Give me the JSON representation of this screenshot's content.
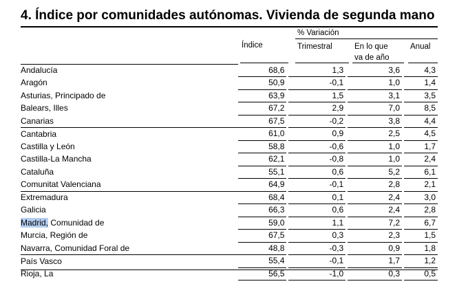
{
  "title": "4. Índice por comunidades autónomas. Vivienda de segunda mano",
  "headers": {
    "indice": "Índice",
    "variacion": "% Variación",
    "trimestral": "Trimestral",
    "en_lo_que_1": "En lo que",
    "en_lo_que_2": "va de año",
    "anual": "Anual"
  },
  "rows": [
    {
      "name": "Andalucía",
      "indice": "68,6",
      "trimestral": "1,3",
      "ytd": "3,6",
      "anual": "4,3"
    },
    {
      "name": "Aragón",
      "indice": "50,9",
      "trimestral": "-0,1",
      "ytd": "1,0",
      "anual": "1,4"
    },
    {
      "name": "Asturias, Principado de",
      "indice": "63,9",
      "trimestral": "1,5",
      "ytd": "3,1",
      "anual": "3,5"
    },
    {
      "name": "Balears, Illes",
      "indice": "67,2",
      "trimestral": "2,9",
      "ytd": "7,0",
      "anual": "8,5"
    },
    {
      "name": "Canarias",
      "indice": "67,5",
      "trimestral": "-0,2",
      "ytd": "3,8",
      "anual": "4,4"
    },
    {
      "name": "Cantabria",
      "indice": "61,0",
      "trimestral": "0,9",
      "ytd": "2,5",
      "anual": "4,5"
    },
    {
      "name": "Castilla y León",
      "indice": "58,8",
      "trimestral": "-0,6",
      "ytd": "1,0",
      "anual": "1,7"
    },
    {
      "name": "Castilla-La Mancha",
      "indice": "62,1",
      "trimestral": "-0,8",
      "ytd": "1,0",
      "anual": "2,4"
    },
    {
      "name": "Cataluña",
      "indice": "55,1",
      "trimestral": "0,6",
      "ytd": "5,2",
      "anual": "6,1"
    },
    {
      "name": "Comunitat Valenciana",
      "indice": "64,9",
      "trimestral": "-0,1",
      "ytd": "2,8",
      "anual": "2,1"
    },
    {
      "name": "Extremadura",
      "indice": "68,4",
      "trimestral": "0,1",
      "ytd": "2,4",
      "anual": "3,0"
    },
    {
      "name": "Galicia",
      "indice": "66,3",
      "trimestral": "0,6",
      "ytd": "2,4",
      "anual": "2,8"
    },
    {
      "name_highlight": "Madrid,",
      "name_rest": " Comunidad de",
      "indice": "59,0",
      "trimestral": "1,1",
      "ytd": "7,2",
      "anual": "6,7"
    },
    {
      "name": "Murcia, Región de",
      "indice": "67,5",
      "trimestral": "0,3",
      "ytd": "2,3",
      "anual": "1,5"
    },
    {
      "name": "Navarra, Comunidad Foral de",
      "indice": "48,8",
      "trimestral": "-0,3",
      "ytd": "0,9",
      "anual": "1,8"
    },
    {
      "name": "País Vasco",
      "indice": "55,4",
      "trimestral": "-0,1",
      "ytd": "1,7",
      "anual": "1,2"
    },
    {
      "name": "Rioja, La",
      "indice": "56,5",
      "trimestral": "-1,0",
      "ytd": "0,3",
      "anual": "0,5"
    }
  ]
}
